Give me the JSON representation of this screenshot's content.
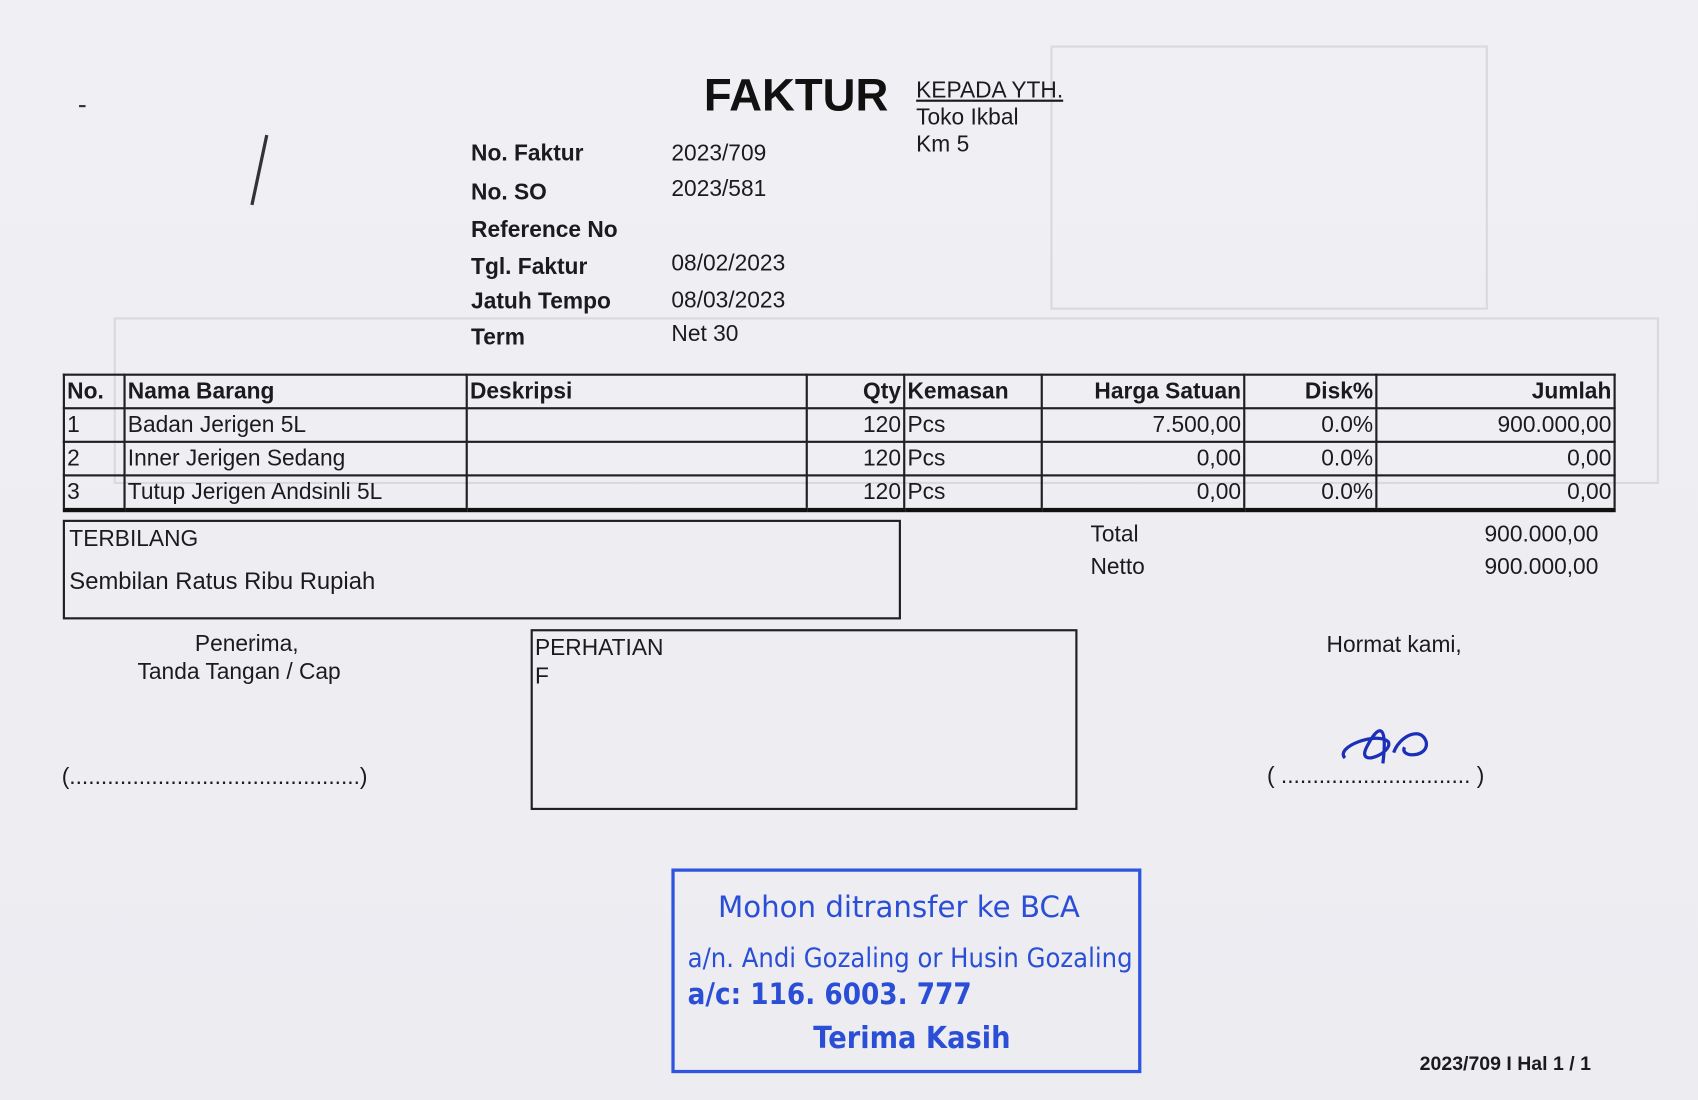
{
  "header": {
    "title": "FAKTUR",
    "to_label": "KEPADA YTH.",
    "to_name": "Toko Ikbal",
    "to_address": "Km 5"
  },
  "meta": [
    {
      "label": "No. Faktur",
      "value": "2023/709"
    },
    {
      "label": "No. SO",
      "value": "2023/581"
    },
    {
      "label": "Reference No",
      "value": ""
    },
    {
      "label": "Tgl. Faktur",
      "value": "08/02/2023"
    },
    {
      "label": "Jatuh Tempo",
      "value": "08/03/2023"
    },
    {
      "label": "Term",
      "value": "Net 30"
    }
  ],
  "table": {
    "headers": [
      "No.",
      "Nama Barang",
      "Deskripsi",
      "Qty",
      "Kemasan",
      "Harga Satuan",
      "Disk%",
      "Jumlah"
    ],
    "rows": [
      {
        "no": "1",
        "name": "Badan Jerigen 5L",
        "desc": "",
        "qty": "120",
        "unit": "Pcs",
        "price": "7.500,00",
        "disc": "0.0%",
        "total": "900.000,00"
      },
      {
        "no": "2",
        "name": "Inner Jerigen Sedang",
        "desc": "",
        "qty": "120",
        "unit": "Pcs",
        "price": "0,00",
        "disc": "0.0%",
        "total": "0,00"
      },
      {
        "no": "3",
        "name": "Tutup Jerigen Andsinli 5L",
        "desc": "",
        "qty": "120",
        "unit": "Pcs",
        "price": "0,00",
        "disc": "0.0%",
        "total": "0,00"
      }
    ]
  },
  "terbilang": {
    "label": "TERBILANG",
    "value": "Sembilan Ratus Ribu Rupiah"
  },
  "totals": {
    "total_label": "Total",
    "total_value": "900.000,00",
    "netto_label": "Netto",
    "netto_value": "900.000,00"
  },
  "receiver": {
    "line1": "Penerima,",
    "line2": "Tanda Tangan / Cap",
    "sign_line": "(..............................................)"
  },
  "notice": {
    "label": "PERHATIAN",
    "value": "F"
  },
  "sender": {
    "label": "Hormat kami,",
    "sign_line": "( .............................. )"
  },
  "stamp": {
    "line1": "Mohon ditransfer ke BCA",
    "line2": "a/n. Andi Gozaling or Husin Gozaling",
    "line3": "a/c: 116. 6003. 777",
    "line4": "Terima Kasih",
    "color": "#2a4fd6"
  },
  "footer": {
    "page_ref": "2023/709 I Hal 1 / 1"
  }
}
